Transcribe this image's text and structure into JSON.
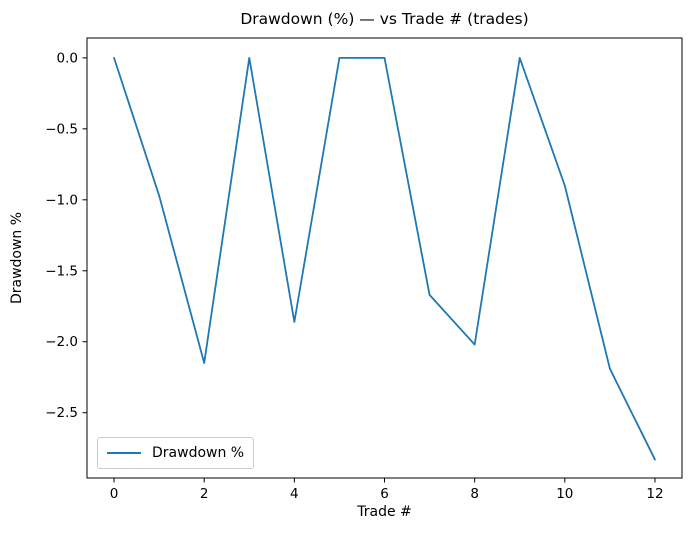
{
  "chart_data": {
    "type": "line",
    "title": "Drawdown (%) — vs Trade # (trades)",
    "xlabel": "Trade #",
    "ylabel": "Drawdown %",
    "x": [
      0,
      1,
      2,
      3,
      4,
      5,
      6,
      7,
      8,
      9,
      10,
      11,
      12
    ],
    "series": [
      {
        "name": "Drawdown %",
        "color": "#1f77b4",
        "values": [
          0.0,
          -0.97,
          -2.15,
          0.0,
          -1.86,
          0.0,
          0.0,
          -1.67,
          -2.02,
          0.0,
          -0.9,
          -2.19,
          -2.83
        ]
      }
    ],
    "xlim": [
      -0.6,
      12.6
    ],
    "ylim": [
      -2.96,
      0.14
    ],
    "xticks": [
      0,
      2,
      4,
      6,
      8,
      10,
      12
    ],
    "xtick_labels": [
      "0",
      "2",
      "4",
      "6",
      "8",
      "10",
      "12"
    ],
    "yticks": [
      0.0,
      -0.5,
      -1.0,
      -1.5,
      -2.0,
      -2.5
    ],
    "ytick_labels": [
      "0.0",
      "−0.5",
      "−1.0",
      "−1.5",
      "−2.0",
      "−2.5"
    ],
    "grid": false,
    "legend": {
      "position": "lower left",
      "entries": [
        "Drawdown %"
      ]
    },
    "frame_color": "#000000",
    "background": "#ffffff"
  }
}
